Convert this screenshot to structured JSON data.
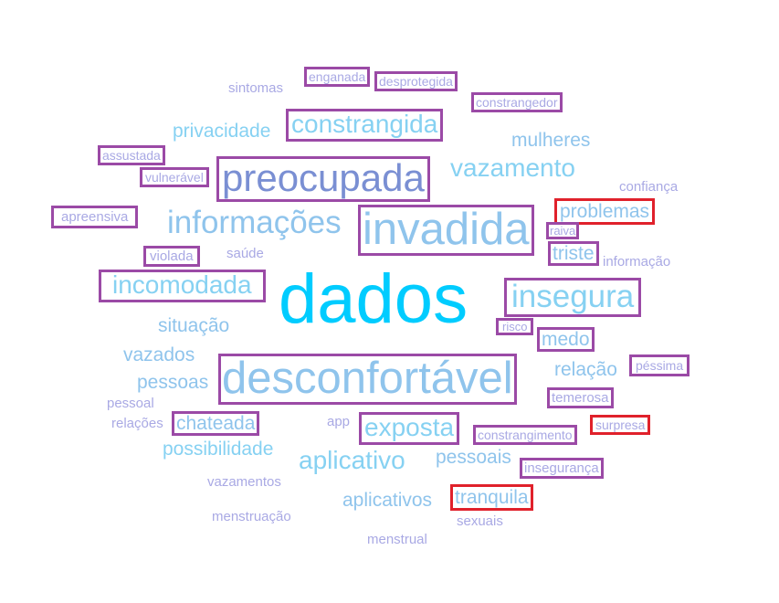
{
  "words": [
    {
      "text": "sintomas",
      "color": "#a9a9e4",
      "box": "none"
    },
    {
      "text": "enganada",
      "color": "#a9a9e4",
      "box": "purple"
    },
    {
      "text": "desprotegida",
      "color": "#a9a9e4",
      "box": "purple"
    },
    {
      "text": "constrangedor",
      "color": "#a9a9e4",
      "box": "purple"
    },
    {
      "text": "privacidade",
      "color": "#86d1f2",
      "box": "none"
    },
    {
      "text": "constrangida",
      "color": "#86d1f2",
      "box": "purple"
    },
    {
      "text": "mulheres",
      "color": "#8fc4ec",
      "box": "none"
    },
    {
      "text": "assustada",
      "color": "#a9a9e4",
      "box": "purple"
    },
    {
      "text": "vulnerável",
      "color": "#a9a9e4",
      "box": "purple"
    },
    {
      "text": "preocupada",
      "color": "#7a8fd3",
      "box": "purple"
    },
    {
      "text": "vazamento",
      "color": "#86d1f2",
      "box": "none"
    },
    {
      "text": "confiança",
      "color": "#a9a9e4",
      "box": "none"
    },
    {
      "text": "apreensiva",
      "color": "#a9a9e4",
      "box": "purple"
    },
    {
      "text": "informações",
      "color": "#8fc4ec",
      "box": "none"
    },
    {
      "text": "invadida",
      "color": "#8fc4ec",
      "box": "purple"
    },
    {
      "text": "problemas",
      "color": "#8fc4ec",
      "box": "red"
    },
    {
      "text": "raiva",
      "color": "#a9a9e4",
      "box": "purple"
    },
    {
      "text": "violada",
      "color": "#a9a9e4",
      "box": "purple"
    },
    {
      "text": "saúde",
      "color": "#a9a9e4",
      "box": "none"
    },
    {
      "text": "triste",
      "color": "#8fc4ec",
      "box": "purple"
    },
    {
      "text": "informação",
      "color": "#a9a9e4",
      "box": "none"
    },
    {
      "text": "incomodada",
      "color": "#86d1f2",
      "box": "purple"
    },
    {
      "text": "dados",
      "color": "#00ccff",
      "box": "none"
    },
    {
      "text": "insegura",
      "color": "#86d1f2",
      "box": "purple"
    },
    {
      "text": "situação",
      "color": "#8fc4ec",
      "box": "none"
    },
    {
      "text": "risco",
      "color": "#a9a9e4",
      "box": "purple"
    },
    {
      "text": "medo",
      "color": "#8fc4ec",
      "box": "purple"
    },
    {
      "text": "vazados",
      "color": "#8fc4ec",
      "box": "none"
    },
    {
      "text": "pessoas",
      "color": "#8fc4ec",
      "box": "none"
    },
    {
      "text": "desconfortável",
      "color": "#8fc4ec",
      "box": "purple"
    },
    {
      "text": "relação",
      "color": "#8fc4ec",
      "box": "none"
    },
    {
      "text": "péssima",
      "color": "#a9a9e4",
      "box": "purple"
    },
    {
      "text": "pessoal",
      "color": "#a9a9e4",
      "box": "none"
    },
    {
      "text": "temerosa",
      "color": "#a9a9e4",
      "box": "purple"
    },
    {
      "text": "relações",
      "color": "#a9a9e4",
      "box": "none"
    },
    {
      "text": "chateada",
      "color": "#8fc4ec",
      "box": "purple"
    },
    {
      "text": "app",
      "color": "#a9a9e4",
      "box": "none"
    },
    {
      "text": "exposta",
      "color": "#86d1f2",
      "box": "purple"
    },
    {
      "text": "constrangimento",
      "color": "#a9a9e4",
      "box": "purple"
    },
    {
      "text": "surpresa",
      "color": "#a9a9e4",
      "box": "red"
    },
    {
      "text": "possibilidade",
      "color": "#86d1f2",
      "box": "none"
    },
    {
      "text": "aplicativo",
      "color": "#86d1f2",
      "box": "none"
    },
    {
      "text": "pessoais",
      "color": "#8fc4ec",
      "box": "none"
    },
    {
      "text": "insegurança",
      "color": "#a9a9e4",
      "box": "purple"
    },
    {
      "text": "vazamentos",
      "color": "#a9a9e4",
      "box": "none"
    },
    {
      "text": "aplicativos",
      "color": "#8fc4ec",
      "box": "none"
    },
    {
      "text": "tranquila",
      "color": "#8fc4ec",
      "box": "red"
    },
    {
      "text": "menstruação",
      "color": "#a9a9e4",
      "box": "none"
    },
    {
      "text": "sexuais",
      "color": "#a9a9e4",
      "box": "none"
    },
    {
      "text": "menstrual",
      "color": "#a9a9e4",
      "box": "none"
    }
  ]
}
